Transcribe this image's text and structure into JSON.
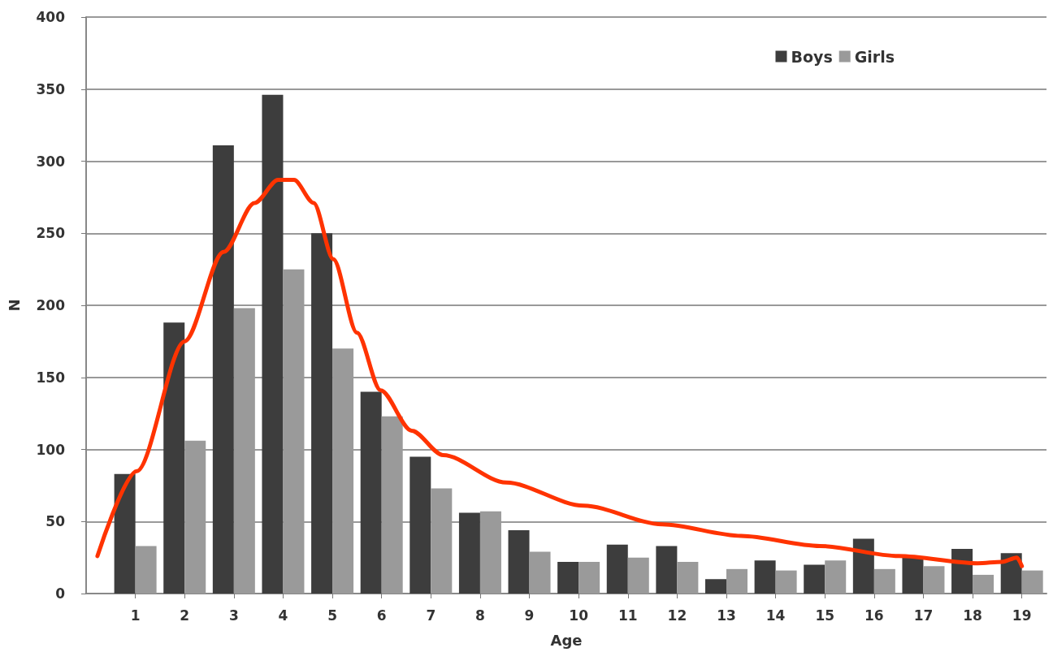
{
  "chart_data": {
    "type": "bar",
    "xlabel": "Age",
    "ylabel": "N",
    "x": [
      1,
      2,
      3,
      4,
      5,
      6,
      7,
      8,
      9,
      10,
      11,
      12,
      13,
      14,
      15,
      16,
      17,
      18,
      19
    ],
    "series": [
      {
        "name": "Boys",
        "color": "#3d3d3d",
        "values": [
          83,
          188,
          311,
          346,
          250,
          140,
          95,
          56,
          44,
          22,
          34,
          33,
          10,
          23,
          20,
          38,
          25,
          31,
          28
        ]
      },
      {
        "name": "Girls",
        "color": "#9a9a9a",
        "values": [
          33,
          106,
          198,
          225,
          170,
          123,
          73,
          57,
          29,
          22,
          25,
          22,
          17,
          16,
          23,
          17,
          19,
          13,
          16
        ]
      },
      {
        "type": "line",
        "color": "#ff3300",
        "x": [
          0.23,
          1.03,
          2.0,
          2.79,
          3.42,
          3.9,
          4.22,
          4.62,
          5.02,
          5.5,
          5.98,
          6.61,
          7.25,
          8.53,
          10.1,
          11.7,
          13.3,
          14.9,
          16.5,
          18.1,
          18.6,
          18.9,
          19.0
        ],
        "values": [
          26,
          85,
          175,
          237,
          271,
          287,
          287,
          271,
          232,
          181,
          141,
          113,
          96,
          77,
          61,
          48,
          40,
          33,
          26,
          21,
          22,
          25,
          19
        ]
      }
    ],
    "xlim": [
      0,
      19.5
    ],
    "xticks": [
      1,
      2,
      3,
      4,
      5,
      6,
      7,
      8,
      9,
      10,
      11,
      12,
      13,
      14,
      15,
      16,
      17,
      18,
      19
    ],
    "ylim": [
      0,
      400
    ],
    "yticks": [
      0,
      50,
      100,
      150,
      200,
      250,
      300,
      350,
      400
    ],
    "grid": "y",
    "legend": "top right",
    "marker": "none",
    "line_style": "solid"
  }
}
